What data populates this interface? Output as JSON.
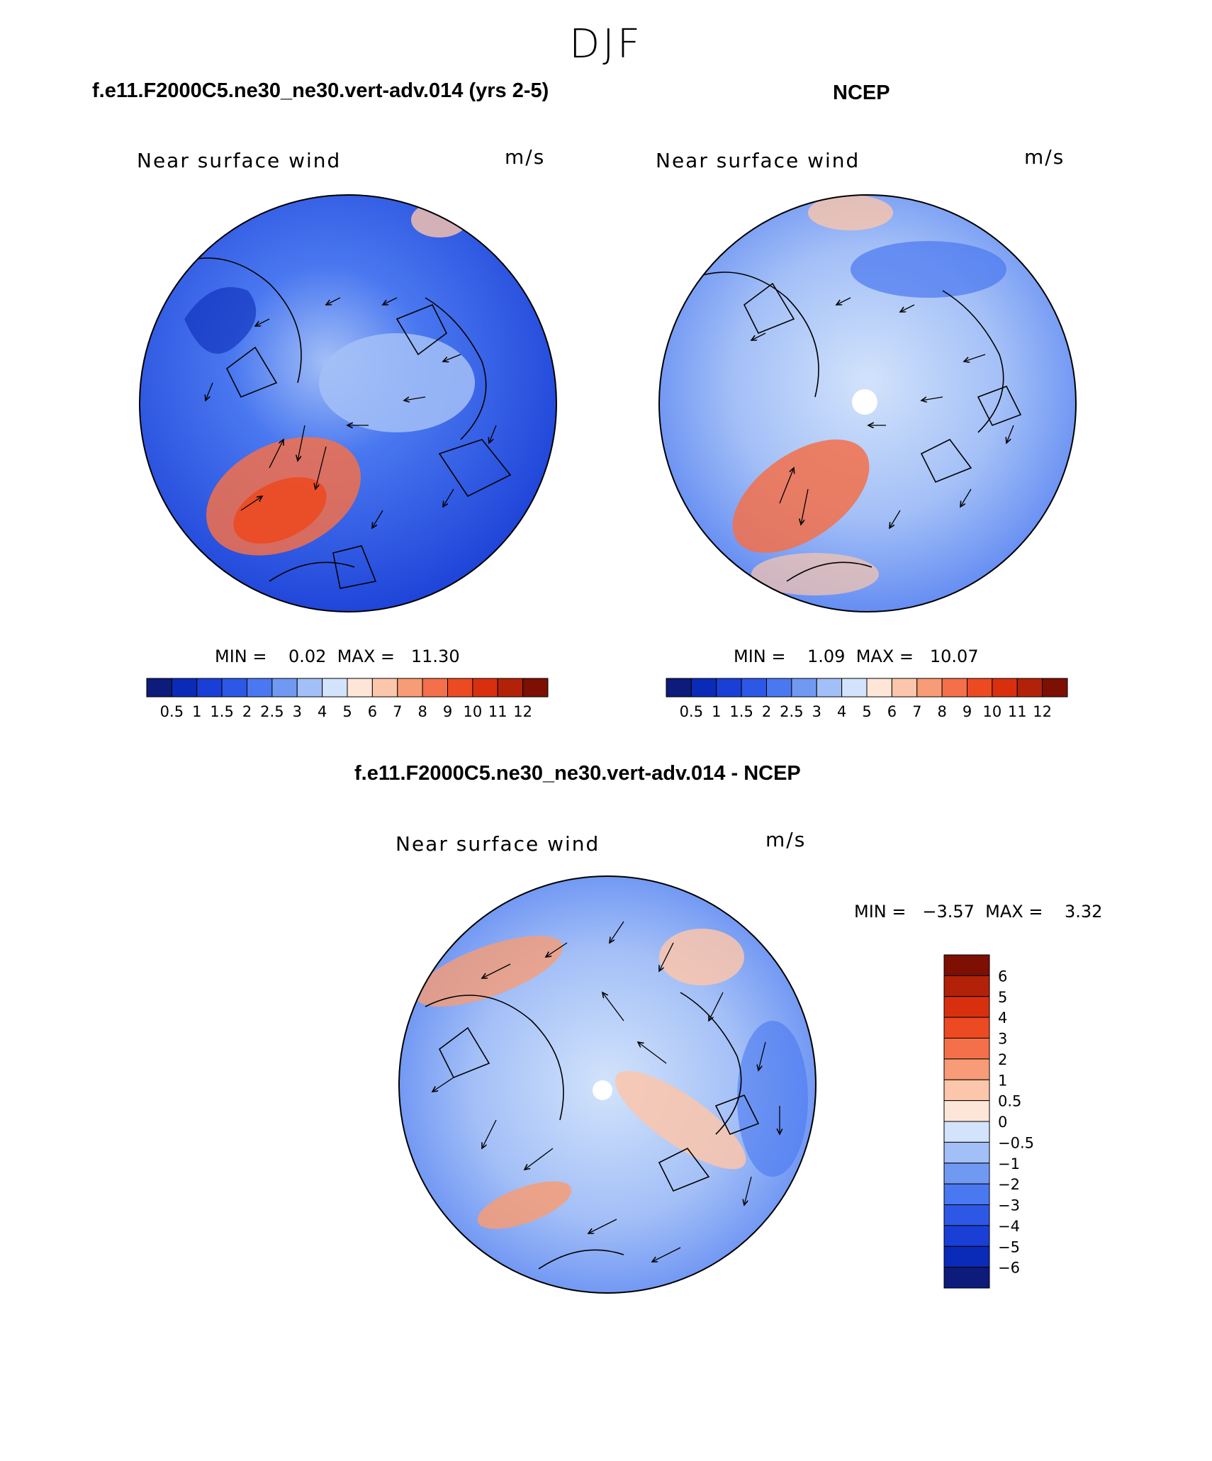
{
  "figure": {
    "season": "DJF",
    "panel_title_model": "f.e11.F2000C5.ne30_ne30.vert-adv.014 (yrs 2-5)",
    "panel_title_obs": "NCEP",
    "panel_title_diff": "f.e11.F2000C5.ne30_ne30.vert-adv.014 - NCEP"
  },
  "panels": {
    "model": {
      "variable": "Near surface wind",
      "units": "m/s",
      "stats": "MIN =    0.02  MAX =   11.30"
    },
    "obs": {
      "variable": "Near surface wind",
      "units": "m/s",
      "stats": "MIN =    1.09  MAX =   10.07"
    },
    "diff": {
      "variable": "Near surface wind",
      "units": "m/s",
      "stats": "MIN =   −3.57  MAX =    3.32"
    }
  },
  "colorbars": {
    "speed_labels": [
      "0.5",
      "1",
      "1.5",
      "2",
      "2.5",
      "3",
      "4",
      "5",
      "6",
      "7",
      "8",
      "9",
      "10",
      "11",
      "12"
    ],
    "speed_colors": [
      "#0d1b7a",
      "#0a2bb8",
      "#1a3fd6",
      "#2d58e6",
      "#4a78f0",
      "#7099f2",
      "#a3bff7",
      "#d2e3fb",
      "#fde6d8",
      "#fbc6ab",
      "#f79c76",
      "#f3704a",
      "#ec4a22",
      "#d8300f",
      "#b22209",
      "#7d0f03"
    ],
    "diff_labels": [
      "6",
      "5",
      "4",
      "3",
      "2",
      "1",
      "0.5",
      "0",
      "−0.5",
      "−1",
      "−2",
      "−3",
      "−4",
      "−5",
      "−6"
    ],
    "diff_colors": [
      "#7d0f03",
      "#b22209",
      "#d8300f",
      "#ec4a22",
      "#f3704a",
      "#f79c76",
      "#fbc6ab",
      "#fde6d8",
      "#d2e3fb",
      "#a3bff7",
      "#7099f2",
      "#4a78f0",
      "#2d58e6",
      "#1a3fd6",
      "#0a2bb8",
      "#0d1b7a"
    ]
  }
}
